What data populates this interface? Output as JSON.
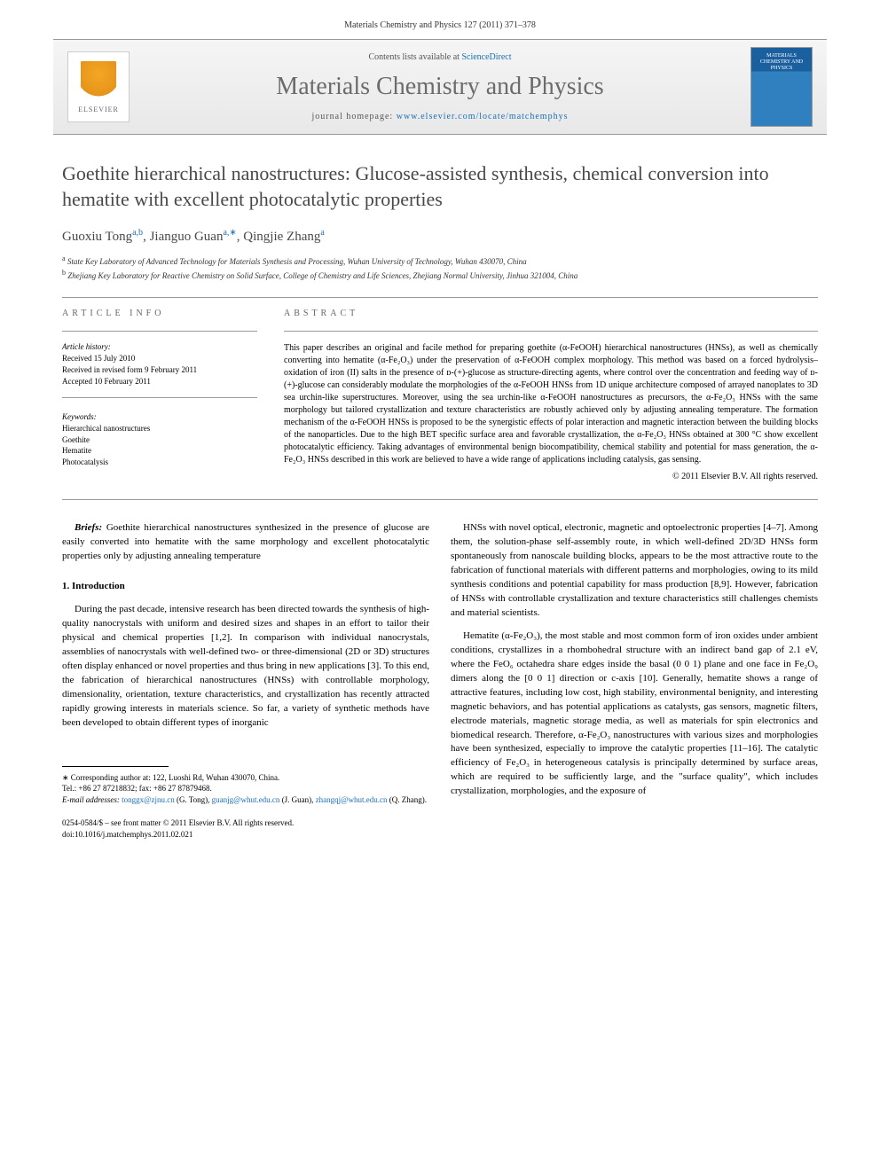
{
  "header": {
    "journal_ref": "Materials Chemistry and Physics 127 (2011) 371–378",
    "contents_prefix": "Contents lists available at ",
    "contents_link": "ScienceDirect",
    "journal_title": "Materials Chemistry and Physics",
    "homepage_prefix": "journal homepage: ",
    "homepage_link": "www.elsevier.com/locate/matchemphys",
    "elsevier_label": "ELSEVIER",
    "cover_label": "MATERIALS CHEMISTRY AND PHYSICS"
  },
  "article": {
    "title": "Goethite hierarchical nanostructures: Glucose-assisted synthesis, chemical conversion into hematite with excellent photocatalytic properties",
    "authors_html": "Guoxiu Tong",
    "author1": "Guoxiu Tong",
    "author1_sup": "a,b",
    "author2": "Jianguo Guan",
    "author2_sup": "a,∗",
    "author3": "Qingjie Zhang",
    "author3_sup": "a",
    "aff_a": "State Key Laboratory of Advanced Technology for Materials Synthesis and Processing, Wuhan University of Technology, Wuhan 430070, China",
    "aff_b": "Zhejiang Key Laboratory for Reactive Chemistry on Solid Surface, College of Chemistry and Life Sciences, Zhejiang Normal University, Jinhua 321004, China"
  },
  "info": {
    "header": "article info",
    "history_label": "Article history:",
    "received": "Received 15 July 2010",
    "revised": "Received in revised form 9 February 2011",
    "accepted": "Accepted 10 February 2011",
    "keywords_label": "Keywords:",
    "kw1": "Hierarchical nanostructures",
    "kw2": "Goethite",
    "kw3": "Hematite",
    "kw4": "Photocatalysis"
  },
  "abstract": {
    "header": "abstract",
    "text": "This paper describes an original and facile method for preparing goethite (α-FeOOH) hierarchical nanostructures (HNSs), as well as chemically converting into hematite (α-Fe₂O₃) under the preservation of α-FeOOH complex morphology. This method was based on a forced hydrolysis–oxidation of iron (II) salts in the presence of ᴅ-(+)-glucose as structure-directing agents, where control over the concentration and feeding way of ᴅ-(+)-glucose can considerably modulate the morphologies of the α-FeOOH HNSs from 1D unique architecture composed of arrayed nanoplates to 3D sea urchin-like superstructures. Moreover, using the sea urchin-like α-FeOOH nanostructures as precursors, the α-Fe₂O₃ HNSs with the same morphology but tailored crystallization and texture characteristics are robustly achieved only by adjusting annealing temperature. The formation mechanism of the α-FeOOH HNSs is proposed to be the synergistic effects of polar interaction and magnetic interaction between the building blocks of the nanoparticles. Due to the high BET specific surface area and favorable crystallization, the α-Fe₂O₃ HNSs obtained at 300 °C show excellent photocatalytic efficiency. Taking advantages of environmental benign biocompatibility, chemical stability and potential for mass generation, the α-Fe₂O₃ HNSs described in this work are believed to have a wide range of applications including catalysis, gas sensing.",
    "copyright": "© 2011 Elsevier B.V. All rights reserved."
  },
  "body": {
    "briefs_label": "Briefs:",
    "briefs_text": " Goethite hierarchical nanostructures synthesized in the presence of glucose are easily converted into hematite with the same morphology and excellent photocatalytic properties only by adjusting annealing temperature",
    "section1_heading": "1. Introduction",
    "col1_p1": "During the past decade, intensive research has been directed towards the synthesis of high-quality nanocrystals with uniform and desired sizes and shapes in an effort to tailor their physical and chemical properties [1,2]. In comparison with individual nanocrystals, assemblies of nanocrystals with well-defined two- or three-dimensional (2D or 3D) structures often display enhanced or novel properties and thus bring in new applications [3]. To this end, the fabrication of hierarchical nanostructures (HNSs) with controllable morphology, dimensionality, orientation, texture characteristics, and crystallization has recently attracted rapidly growing interests in materials science. So far, a variety of synthetic methods have been developed to obtain different types of inorganic",
    "col2_p1": "HNSs with novel optical, electronic, magnetic and optoelectronic properties [4–7]. Among them, the solution-phase self-assembly route, in which well-defined 2D/3D HNSs form spontaneously from nanoscale building blocks, appears to be the most attractive route to the fabrication of functional materials with different patterns and morphologies, owing to its mild synthesis conditions and potential capability for mass production [8,9]. However, fabrication of HNSs with controllable crystallization and texture characteristics still challenges chemists and material scientists.",
    "col2_p2": "Hematite (α-Fe₂O₃), the most stable and most common form of iron oxides under ambient conditions, crystallizes in a rhombohedral structure with an indirect band gap of 2.1 eV, where the FeO₆ octahedra share edges inside the basal (0 0 1) plane and one face in Fe₂O₉ dimers along the [0 0 1] direction or c-axis [10]. Generally, hematite shows a range of attractive features, including low cost, high stability, environmental benignity, and interesting magnetic behaviors, and has potential applications as catalysts, gas sensors, magnetic filters, electrode materials, magnetic storage media, as well as materials for spin electronics and biomedical research. Therefore, α-Fe₂O₃ nanostructures with various sizes and morphologies have been synthesized, especially to improve the catalytic properties [11–16]. The catalytic efficiency of Fe₂O₃ in heterogeneous catalysis is principally determined by surface areas, which are required to be sufficiently large, and the \"surface quality\", which includes crystallization, morphologies, and the exposure of"
  },
  "footer": {
    "corresponding": "∗ Corresponding author at: 122, Luoshi Rd, Wuhan 430070, China.",
    "tel": "Tel.: +86 27 87218832; fax: +86 27 87879468.",
    "email_label": "E-mail addresses:",
    "email1": "tonggx@zjnu.cn",
    "email1_name": " (G. Tong), ",
    "email2": "guanjg@whut.edu.cn",
    "email2_name": " (J. Guan), ",
    "email3": "zhangqj@whut.edu.cn",
    "email3_name": " (Q. Zhang).",
    "copyright_line": "0254-0584/$ – see front matter © 2011 Elsevier B.V. All rights reserved.",
    "doi": "doi:10.1016/j.matchemphys.2011.02.021"
  },
  "colors": {
    "link": "#1a6fb8",
    "title_gray": "#484848",
    "text": "#000000"
  }
}
